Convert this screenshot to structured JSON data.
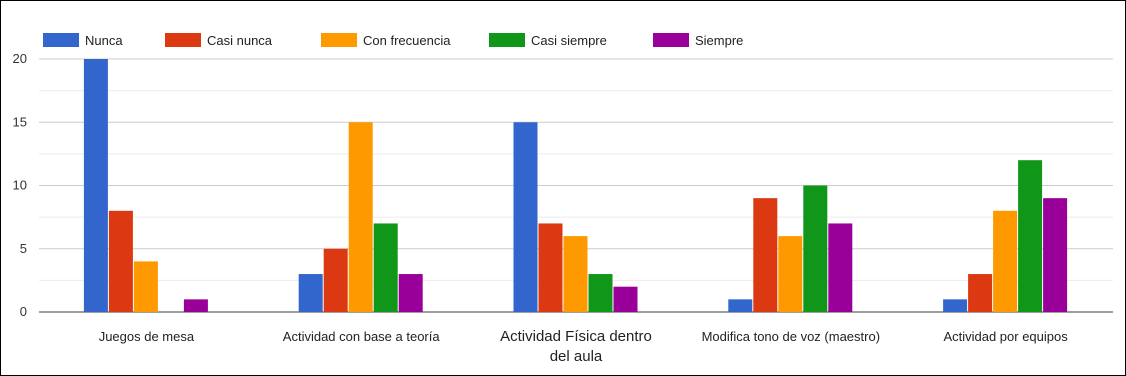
{
  "chart_data": {
    "type": "bar",
    "categories": [
      [
        "Juegos de mesa"
      ],
      [
        "Actividad con base a teoría"
      ],
      [
        "Actividad  Física dentro",
        "del aula"
      ],
      [
        "Modifica tono de voz (maestro)"
      ],
      [
        "Actividad por equipos"
      ]
    ],
    "series": [
      {
        "name": "Nunca",
        "color": "#3366cc",
        "values": [
          20,
          3,
          15,
          1,
          1
        ]
      },
      {
        "name": "Casi nunca",
        "color": "#dc3912",
        "values": [
          8,
          5,
          7,
          9,
          3
        ]
      },
      {
        "name": "Con frecuencia",
        "color": "#ff9900",
        "values": [
          4,
          15,
          6,
          6,
          8
        ]
      },
      {
        "name": "Casi siempre",
        "color": "#109618",
        "values": [
          0,
          7,
          3,
          10,
          12
        ]
      },
      {
        "name": "Siempre",
        "color": "#990099",
        "values": [
          1,
          3,
          2,
          7,
          9
        ]
      }
    ],
    "ylim": [
      0,
      20
    ],
    "yticks": [
      0,
      5,
      10,
      15,
      20
    ],
    "grid": true,
    "legend_position": "top-left"
  }
}
